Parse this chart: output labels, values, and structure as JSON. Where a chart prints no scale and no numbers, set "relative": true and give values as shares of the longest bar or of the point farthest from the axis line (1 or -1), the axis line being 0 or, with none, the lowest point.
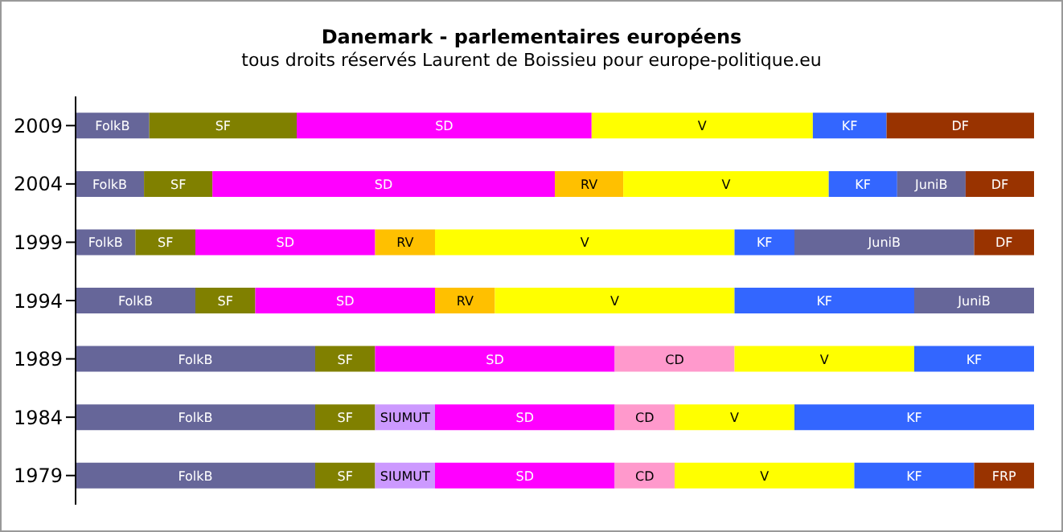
{
  "chart_data": {
    "type": "bar",
    "orientation": "horizontal",
    "stacked": true,
    "relative": true,
    "title": "Danemark - parlementaires européens",
    "subtitle": "tous droits réservés Laurent de Boissieu pour europe-politique.eu",
    "categories": [
      "2009",
      "2004",
      "1999",
      "1994",
      "1989",
      "1984",
      "1979"
    ],
    "series": [
      {
        "name": "FolkB",
        "color": "#666699",
        "values": [
          0.0769,
          0.0714,
          0.0625,
          0.125,
          0.25,
          0.25,
          0.25
        ]
      },
      {
        "name": "SF",
        "color": "#808000",
        "values": [
          0.1538,
          0.0714,
          0.0625,
          0.0625,
          0.0625,
          0.0625,
          0.0625
        ]
      },
      {
        "name": "SIUMUT",
        "color": "#cc99ff",
        "values": [
          null,
          null,
          null,
          null,
          null,
          0.0625,
          0.0625
        ]
      },
      {
        "name": "SD",
        "color": "#ff00ff",
        "values": [
          0.3077,
          0.3572,
          0.1875,
          0.1875,
          0.25,
          0.1875,
          0.1875
        ]
      },
      {
        "name": "RV",
        "color": "#ffc000",
        "values": [
          null,
          0.0714,
          0.0625,
          0.0625,
          null,
          null,
          null
        ]
      },
      {
        "name": "CD",
        "color": "#ff99cc",
        "values": [
          null,
          null,
          null,
          null,
          0.125,
          0.0625,
          0.0625
        ]
      },
      {
        "name": "V",
        "color": "#ffff00",
        "values": [
          0.2308,
          0.2144,
          0.3125,
          0.25,
          0.1875,
          0.125,
          0.1875
        ]
      },
      {
        "name": "KF",
        "color": "#3366ff",
        "values": [
          0.0769,
          0.0714,
          0.0625,
          0.1875,
          0.125,
          0.25,
          0.125
        ]
      },
      {
        "name": "JuniB",
        "color": "#666699",
        "values": [
          null,
          0.0714,
          0.1875,
          0.125,
          null,
          null,
          null
        ]
      },
      {
        "name": "DF",
        "color": "#993300",
        "values": [
          0.1539,
          0.0714,
          0.0625,
          null,
          null,
          null,
          null
        ]
      },
      {
        "name": "FRP",
        "color": "#993300",
        "values": [
          null,
          null,
          null,
          null,
          null,
          null,
          0.0625
        ]
      }
    ]
  }
}
